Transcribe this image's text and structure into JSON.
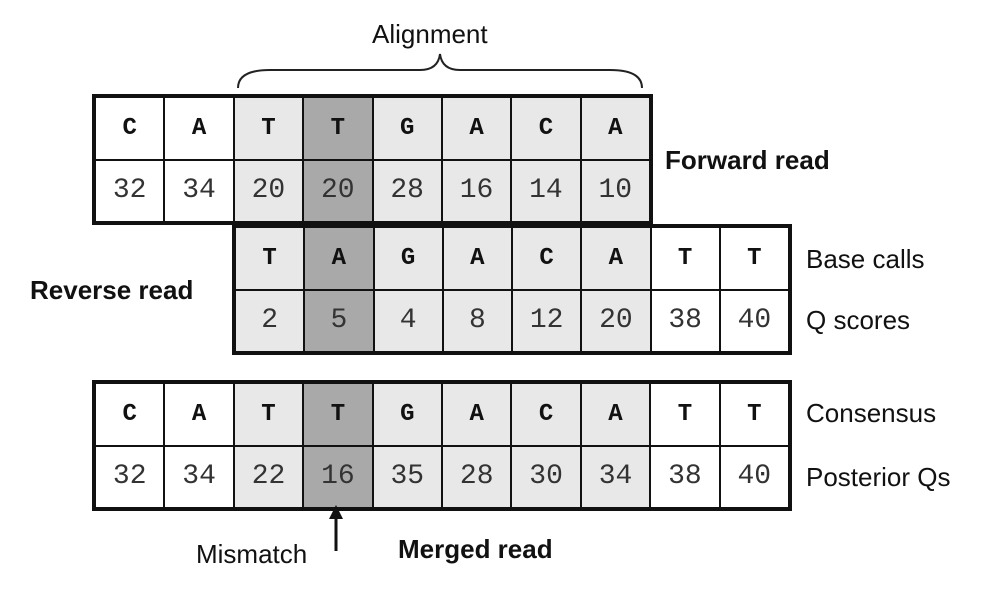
{
  "labels": {
    "alignment": "Alignment",
    "forward_read": "Forward read",
    "reverse_read": "Reverse read",
    "base_calls": "Base calls",
    "q_scores": "Q scores",
    "consensus": "Consensus",
    "posterior_qs": "Posterior Qs",
    "mismatch": "Mismatch",
    "merged_read": "Merged read"
  },
  "forward_read": {
    "bases": [
      "C",
      "A",
      "T",
      "T",
      "G",
      "A",
      "C",
      "A"
    ],
    "scores": [
      "32",
      "34",
      "20",
      "20",
      "28",
      "16",
      "14",
      "10"
    ],
    "shade": [
      "white",
      "white",
      "light",
      "dark",
      "light",
      "light",
      "light",
      "light"
    ]
  },
  "reverse_read": {
    "bases": [
      "T",
      "A",
      "G",
      "A",
      "C",
      "A",
      "T",
      "T"
    ],
    "scores": [
      "2",
      "5",
      "4",
      "8",
      "12",
      "20",
      "38",
      "40"
    ],
    "shade": [
      "light",
      "dark",
      "light",
      "light",
      "light",
      "light",
      "white",
      "white"
    ]
  },
  "merged_read": {
    "bases": [
      "C",
      "A",
      "T",
      "T",
      "G",
      "A",
      "C",
      "A",
      "T",
      "T"
    ],
    "scores": [
      "32",
      "34",
      "22",
      "16",
      "35",
      "28",
      "30",
      "34",
      "38",
      "40"
    ],
    "shade": [
      "white",
      "white",
      "light",
      "dark",
      "light",
      "light",
      "light",
      "light",
      "white",
      "white"
    ]
  },
  "colors": {
    "overlap": "#e8e8e8",
    "mismatch": "#a9a9a9",
    "unaligned": "#ffffff",
    "border": "#111111"
  }
}
